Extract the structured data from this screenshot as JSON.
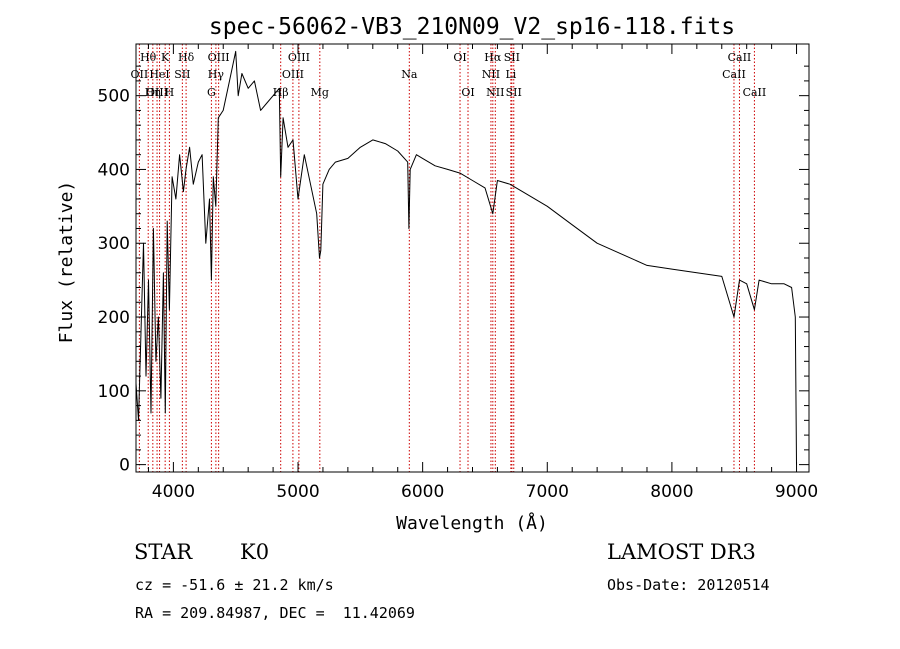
{
  "chart_data": {
    "type": "line",
    "title": "spec-56062-VB3_210N09_V2_sp16-118.fits",
    "xlabel": "Wavelength (Å)",
    "ylabel": "Flux (relative)",
    "xlim": [
      3700,
      9100
    ],
    "ylim": [
      -10,
      570
    ],
    "xticks": [
      4000,
      5000,
      6000,
      7000,
      8000,
      9000
    ],
    "yticks": [
      0,
      100,
      200,
      300,
      400,
      500
    ],
    "series": [
      {
        "name": "spectrum",
        "x": [
          3700,
          3720,
          3740,
          3760,
          3780,
          3800,
          3820,
          3840,
          3860,
          3880,
          3900,
          3920,
          3935,
          3950,
          3968,
          3990,
          4020,
          4050,
          4080,
          4101,
          4130,
          4160,
          4200,
          4230,
          4260,
          4290,
          4305,
          4320,
          4340,
          4360,
          4400,
          4450,
          4500,
          4520,
          4550,
          4600,
          4650,
          4700,
          4750,
          4800,
          4850,
          4861,
          4880,
          4920,
          4960,
          5000,
          5050,
          5100,
          5150,
          5172,
          5183,
          5200,
          5250,
          5300,
          5400,
          5500,
          5600,
          5700,
          5800,
          5880,
          5890,
          5900,
          5950,
          6000,
          6100,
          6200,
          6300,
          6400,
          6500,
          6563,
          6600,
          6700,
          6800,
          7000,
          7200,
          7400,
          7600,
          7800,
          8000,
          8200,
          8400,
          8498,
          8542,
          8600,
          8662,
          8700,
          8800,
          8900,
          8960,
          8990,
          9000
        ],
        "y": [
          110,
          60,
          180,
          300,
          120,
          250,
          70,
          320,
          140,
          200,
          90,
          260,
          70,
          330,
          210,
          390,
          360,
          420,
          370,
          400,
          430,
          380,
          410,
          420,
          300,
          360,
          250,
          390,
          350,
          470,
          480,
          520,
          560,
          500,
          530,
          510,
          520,
          480,
          490,
          500,
          510,
          390,
          470,
          430,
          440,
          360,
          420,
          380,
          340,
          280,
          290,
          380,
          400,
          410,
          415,
          430,
          440,
          435,
          425,
          410,
          320,
          400,
          420,
          415,
          405,
          400,
          395,
          385,
          375,
          340,
          385,
          380,
          370,
          350,
          325,
          300,
          285,
          270,
          265,
          260,
          255,
          200,
          250,
          245,
          210,
          250,
          245,
          245,
          240,
          200,
          0
        ]
      }
    ],
    "lines": [
      {
        "label": "Hθ",
        "wave": 3798,
        "row": 0
      },
      {
        "label": "OII",
        "wave": 3727,
        "row": 1
      },
      {
        "label": "OIII",
        "wave": 3869,
        "row": 2
      },
      {
        "label": "K",
        "wave": 3934,
        "row": 0
      },
      {
        "label": "HeI",
        "wave": 3889,
        "row": 1
      },
      {
        "label": "Hη",
        "wave": 3835,
        "row": 2
      },
      {
        "label": "Hδ",
        "wave": 4102,
        "row": 0
      },
      {
        "label": "SII",
        "wave": 4072,
        "row": 1
      },
      {
        "label": "H",
        "wave": 3968,
        "row": 2
      },
      {
        "label": "OIII",
        "wave": 4363,
        "row": 0
      },
      {
        "label": "Hγ",
        "wave": 4341,
        "row": 1
      },
      {
        "label": "G",
        "wave": 4305,
        "row": 2
      },
      {
        "label": "OIII",
        "wave": 5007,
        "row": 0
      },
      {
        "label": "OIII",
        "wave": 4959,
        "row": 1
      },
      {
        "label": "Hβ",
        "wave": 4861,
        "row": 2
      },
      {
        "label": "Mg",
        "wave": 5175,
        "row": 2
      },
      {
        "label": "Na",
        "wave": 5893,
        "row": 1
      },
      {
        "label": "OI",
        "wave": 6300,
        "row": 0
      },
      {
        "label": "OI",
        "wave": 6364,
        "row": 2
      },
      {
        "label": "Hα",
        "wave": 6563,
        "row": 0
      },
      {
        "label": "SII",
        "wave": 6716,
        "row": 0
      },
      {
        "label": "NII",
        "wave": 6548,
        "row": 1
      },
      {
        "label": "Li",
        "wave": 6708,
        "row": 1
      },
      {
        "label": "NII",
        "wave": 6583,
        "row": 2
      },
      {
        "label": "SII",
        "wave": 6731,
        "row": 2
      },
      {
        "label": "CaII",
        "wave": 8542,
        "row": 0
      },
      {
        "label": "CaII",
        "wave": 8498,
        "row": 1
      },
      {
        "label": "CaII",
        "wave": 8662,
        "row": 2
      }
    ],
    "line_color": "#cc0000"
  },
  "footer": {
    "object_class": "STAR",
    "subclass": "K0",
    "survey": "LAMOST DR3",
    "redshift_text": "cz = -51.6 ± 21.2 km/s",
    "obs_date": "Obs-Date: 20120514",
    "coords": "RA = 209.84987, DEC =  11.42069"
  }
}
